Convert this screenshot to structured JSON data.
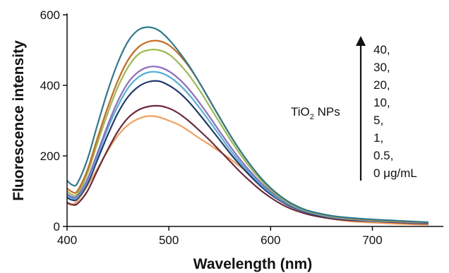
{
  "chart_data": {
    "type": "line",
    "xlabel": "Wavelength (nm)",
    "ylabel": "Fluorescence intensity",
    "xlim": [
      400,
      760
    ],
    "ylim": [
      0,
      600
    ],
    "xticks": [
      400,
      500,
      600,
      700
    ],
    "yticks": [
      0,
      200,
      400,
      600
    ],
    "grid": false,
    "legend": "none",
    "annotation": {
      "label_main": "TiO",
      "label_sub": "2",
      "label_tail": " NPs",
      "levels": [
        "40,",
        "30,",
        "20,",
        "10,",
        "5,",
        "1,",
        "0.5,",
        "0 μg/mL"
      ],
      "arrow": "up"
    },
    "series": [
      {
        "color": "#F5A05A",
        "points": [
          [
            400,
            65
          ],
          [
            405,
            62
          ],
          [
            410,
            72
          ],
          [
            420,
            115
          ],
          [
            430,
            165
          ],
          [
            440,
            215
          ],
          [
            450,
            258
          ],
          [
            460,
            288
          ],
          [
            470,
            305
          ],
          [
            480,
            313
          ],
          [
            490,
            310
          ],
          [
            500,
            300
          ],
          [
            510,
            288
          ],
          [
            520,
            270
          ],
          [
            530,
            250
          ],
          [
            540,
            232
          ],
          [
            550,
            212
          ],
          [
            560,
            192
          ],
          [
            570,
            170
          ],
          [
            580,
            148
          ],
          [
            590,
            120
          ],
          [
            600,
            98
          ],
          [
            610,
            78
          ],
          [
            620,
            62
          ],
          [
            630,
            48
          ],
          [
            640,
            37
          ],
          [
            660,
            22
          ],
          [
            680,
            14
          ],
          [
            700,
            11
          ],
          [
            720,
            8
          ],
          [
            740,
            6
          ],
          [
            755,
            5
          ]
        ]
      },
      {
        "color": "#6E2A3A",
        "points": [
          [
            400,
            68
          ],
          [
            405,
            62
          ],
          [
            410,
            64
          ],
          [
            420,
            100
          ],
          [
            430,
            160
          ],
          [
            440,
            218
          ],
          [
            450,
            270
          ],
          [
            460,
            308
          ],
          [
            470,
            330
          ],
          [
            480,
            340
          ],
          [
            490,
            342
          ],
          [
            500,
            335
          ],
          [
            510,
            320
          ],
          [
            520,
            298
          ],
          [
            530,
            272
          ],
          [
            540,
            245
          ],
          [
            550,
            215
          ],
          [
            560,
            185
          ],
          [
            570,
            155
          ],
          [
            580,
            128
          ],
          [
            590,
            103
          ],
          [
            600,
            82
          ],
          [
            610,
            64
          ],
          [
            620,
            50
          ],
          [
            630,
            40
          ],
          [
            640,
            32
          ],
          [
            660,
            22
          ],
          [
            680,
            17
          ],
          [
            700,
            15
          ],
          [
            720,
            12
          ],
          [
            740,
            9
          ],
          [
            755,
            8
          ]
        ]
      },
      {
        "color": "#1F3A72",
        "points": [
          [
            400,
            82
          ],
          [
            405,
            75
          ],
          [
            410,
            78
          ],
          [
            420,
            120
          ],
          [
            430,
            190
          ],
          [
            440,
            260
          ],
          [
            450,
            322
          ],
          [
            460,
            368
          ],
          [
            470,
            396
          ],
          [
            480,
            410
          ],
          [
            490,
            412
          ],
          [
            500,
            400
          ],
          [
            510,
            380
          ],
          [
            520,
            352
          ],
          [
            530,
            318
          ],
          [
            540,
            282
          ],
          [
            550,
            245
          ],
          [
            560,
            208
          ],
          [
            570,
            174
          ],
          [
            580,
            143
          ],
          [
            590,
            115
          ],
          [
            600,
            91
          ],
          [
            610,
            72
          ],
          [
            620,
            56
          ],
          [
            630,
            45
          ],
          [
            640,
            36
          ],
          [
            660,
            25
          ],
          [
            680,
            19
          ],
          [
            700,
            15
          ],
          [
            720,
            13
          ],
          [
            740,
            10
          ],
          [
            755,
            9
          ]
        ]
      },
      {
        "color": "#4FB0D8",
        "points": [
          [
            400,
            88
          ],
          [
            405,
            80
          ],
          [
            410,
            82
          ],
          [
            420,
            128
          ],
          [
            430,
            202
          ],
          [
            440,
            278
          ],
          [
            450,
            342
          ],
          [
            460,
            393
          ],
          [
            470,
            423
          ],
          [
            480,
            437
          ],
          [
            490,
            437
          ],
          [
            500,
            425
          ],
          [
            510,
            403
          ],
          [
            520,
            373
          ],
          [
            530,
            337
          ],
          [
            540,
            298
          ],
          [
            550,
            258
          ],
          [
            560,
            218
          ],
          [
            570,
            182
          ],
          [
            580,
            150
          ],
          [
            590,
            120
          ],
          [
            600,
            95
          ],
          [
            610,
            75
          ],
          [
            620,
            59
          ],
          [
            630,
            47
          ],
          [
            640,
            38
          ],
          [
            660,
            26
          ],
          [
            680,
            20
          ],
          [
            700,
            16
          ],
          [
            720,
            14
          ],
          [
            740,
            11
          ],
          [
            755,
            10
          ]
        ]
      },
      {
        "color": "#8E6BC4",
        "points": [
          [
            400,
            92
          ],
          [
            405,
            84
          ],
          [
            410,
            86
          ],
          [
            420,
            134
          ],
          [
            430,
            210
          ],
          [
            440,
            288
          ],
          [
            450,
            356
          ],
          [
            460,
            408
          ],
          [
            470,
            438
          ],
          [
            480,
            452
          ],
          [
            490,
            452
          ],
          [
            500,
            440
          ],
          [
            510,
            418
          ],
          [
            520,
            388
          ],
          [
            530,
            351
          ],
          [
            540,
            311
          ],
          [
            550,
            269
          ],
          [
            560,
            228
          ],
          [
            570,
            190
          ],
          [
            580,
            156
          ],
          [
            590,
            125
          ],
          [
            600,
            99
          ],
          [
            610,
            78
          ],
          [
            620,
            61
          ],
          [
            630,
            49
          ],
          [
            640,
            39
          ],
          [
            660,
            27
          ],
          [
            680,
            21
          ],
          [
            700,
            17
          ],
          [
            720,
            14
          ],
          [
            740,
            11
          ],
          [
            755,
            10
          ]
        ]
      },
      {
        "color": "#9BBB4E",
        "points": [
          [
            400,
            100
          ],
          [
            405,
            90
          ],
          [
            410,
            92
          ],
          [
            420,
            150
          ],
          [
            430,
            238
          ],
          [
            440,
            322
          ],
          [
            450,
            396
          ],
          [
            460,
            452
          ],
          [
            470,
            488
          ],
          [
            480,
            500
          ],
          [
            490,
            500
          ],
          [
            500,
            488
          ],
          [
            510,
            462
          ],
          [
            520,
            428
          ],
          [
            530,
            387
          ],
          [
            540,
            341
          ],
          [
            550,
            294
          ],
          [
            560,
            248
          ],
          [
            570,
            205
          ],
          [
            580,
            167
          ],
          [
            590,
            133
          ],
          [
            600,
            104
          ],
          [
            610,
            81
          ],
          [
            620,
            63
          ],
          [
            630,
            50
          ],
          [
            640,
            40
          ],
          [
            660,
            28
          ],
          [
            680,
            22
          ],
          [
            700,
            18
          ],
          [
            720,
            15
          ],
          [
            740,
            12
          ],
          [
            755,
            11
          ]
        ]
      },
      {
        "color": "#C8691E",
        "points": [
          [
            400,
            108
          ],
          [
            405,
            98
          ],
          [
            410,
            100
          ],
          [
            420,
            160
          ],
          [
            430,
            252
          ],
          [
            440,
            338
          ],
          [
            450,
            414
          ],
          [
            460,
            472
          ],
          [
            470,
            508
          ],
          [
            480,
            524
          ],
          [
            490,
            526
          ],
          [
            500,
            514
          ],
          [
            510,
            488
          ],
          [
            520,
            452
          ],
          [
            530,
            408
          ],
          [
            540,
            359
          ],
          [
            550,
            309
          ],
          [
            560,
            260
          ],
          [
            570,
            215
          ],
          [
            580,
            175
          ],
          [
            590,
            139
          ],
          [
            600,
            109
          ],
          [
            610,
            85
          ],
          [
            620,
            66
          ],
          [
            630,
            52
          ],
          [
            640,
            42
          ],
          [
            660,
            30
          ],
          [
            680,
            23
          ],
          [
            700,
            19
          ],
          [
            720,
            16
          ],
          [
            740,
            13
          ],
          [
            755,
            11
          ]
        ]
      },
      {
        "color": "#2E7A8E",
        "points": [
          [
            400,
            130
          ],
          [
            405,
            118
          ],
          [
            410,
            122
          ],
          [
            420,
            190
          ],
          [
            430,
            290
          ],
          [
            440,
            385
          ],
          [
            450,
            465
          ],
          [
            460,
            525
          ],
          [
            470,
            557
          ],
          [
            480,
            565
          ],
          [
            490,
            556
          ],
          [
            500,
            530
          ],
          [
            510,
            495
          ],
          [
            520,
            455
          ],
          [
            530,
            408
          ],
          [
            540,
            358
          ],
          [
            550,
            308
          ],
          [
            560,
            260
          ],
          [
            570,
            215
          ],
          [
            580,
            175
          ],
          [
            590,
            139
          ],
          [
            600,
            109
          ],
          [
            610,
            85
          ],
          [
            620,
            66
          ],
          [
            630,
            52
          ],
          [
            640,
            42
          ],
          [
            660,
            30
          ],
          [
            680,
            24
          ],
          [
            700,
            20
          ],
          [
            720,
            17
          ],
          [
            740,
            14
          ],
          [
            755,
            12
          ]
        ]
      }
    ]
  }
}
